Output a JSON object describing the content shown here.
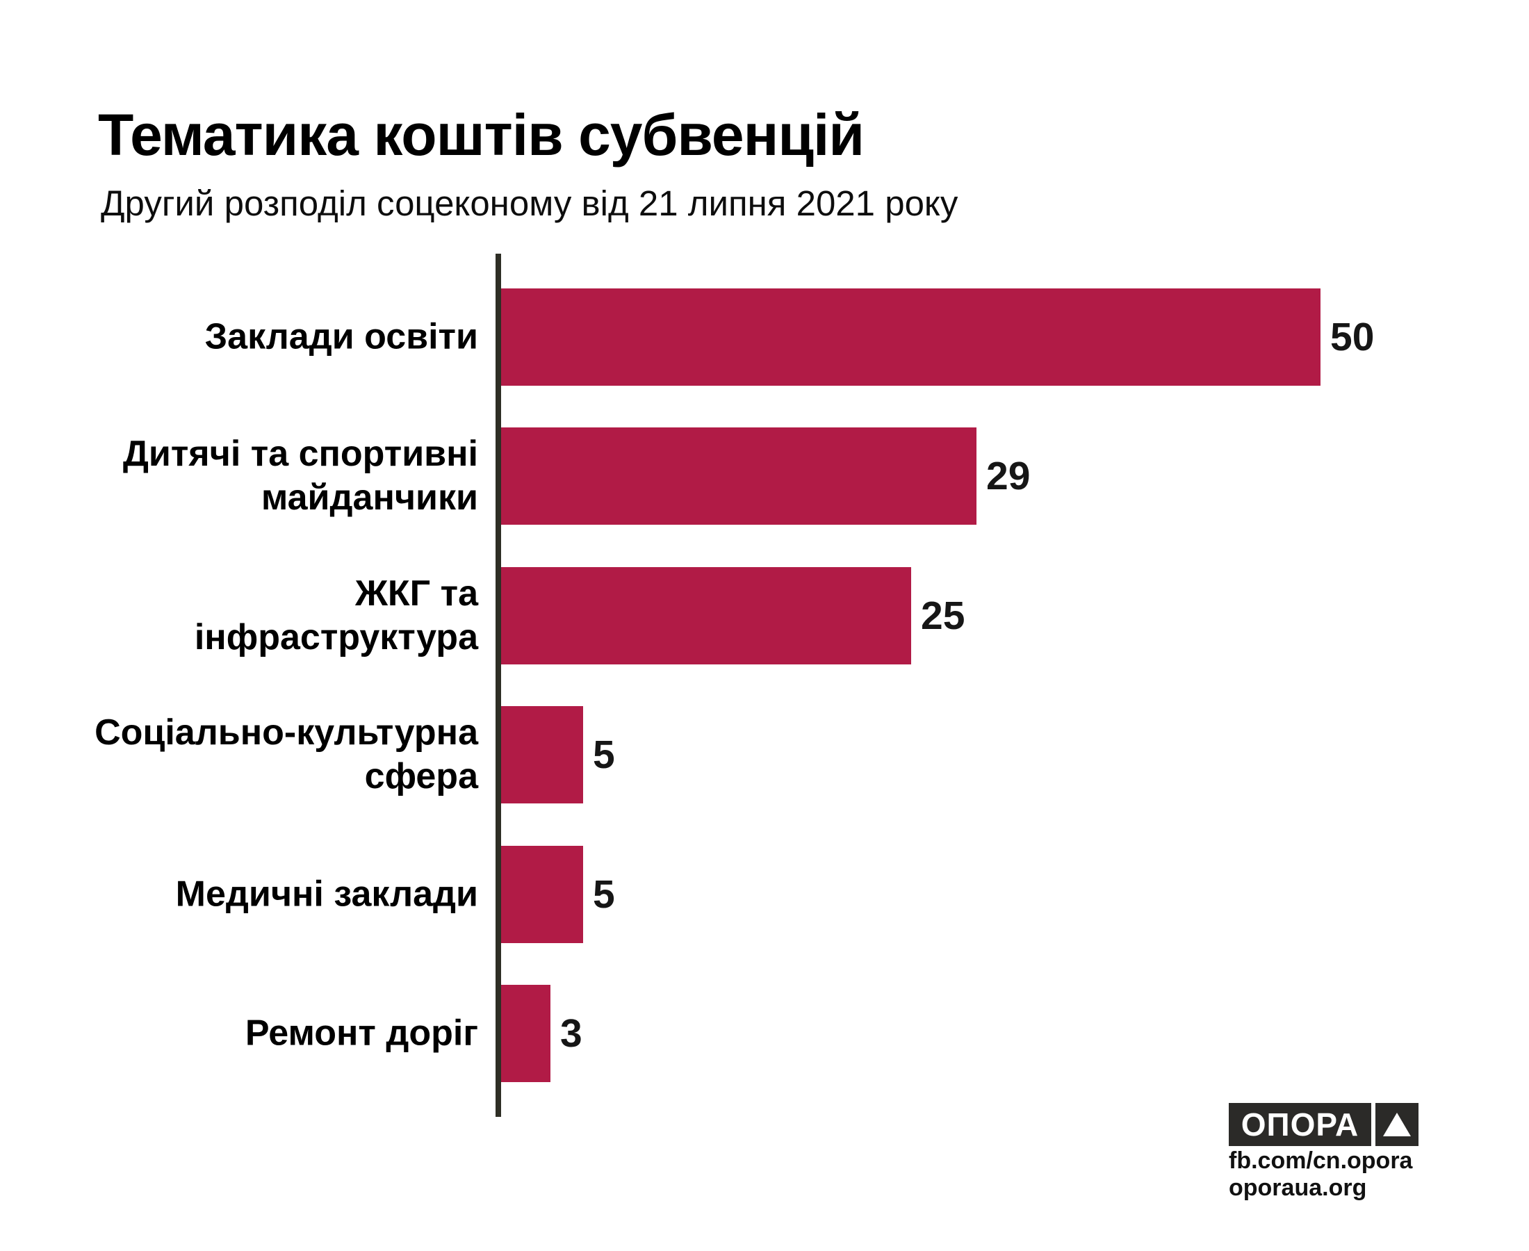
{
  "chart_data": {
    "type": "bar",
    "orientation": "horizontal",
    "title": "Тематика коштів субвенцій",
    "subtitle": "Другий розподіл соцеконому від 21 липня 2021 року",
    "categories": [
      "Заклади освіти",
      "Дитячі та спортивні майданчики",
      "ЖКГ та інфраструктура",
      "Соціально-культурна сфера",
      "Медичні заклади",
      "Ремонт доріг"
    ],
    "label_lines": [
      [
        "Заклади освіти"
      ],
      [
        "Дитячі та спортивні",
        "майданчики"
      ],
      [
        "ЖКГ та",
        "інфраструктура"
      ],
      [
        "Соціально-культурна",
        "сфера"
      ],
      [
        "Медичні заклади"
      ],
      [
        "Ремонт доріг"
      ]
    ],
    "values": [
      50,
      29,
      25,
      5,
      5,
      3
    ],
    "value_labels": [
      "50",
      "29",
      "25",
      "5",
      "5",
      "3"
    ],
    "xlim": [
      0,
      52
    ],
    "grid": false,
    "legend": false,
    "bar_color": "#B11B46",
    "axis_color": "#2E2E25",
    "label_color": "#000000",
    "value_color": "#161616"
  },
  "footer": {
    "logo_text": "ОПОРА",
    "logo_bg": "#2B2A28",
    "links": [
      "fb.com/cn.opora",
      "oporaua.org"
    ]
  }
}
